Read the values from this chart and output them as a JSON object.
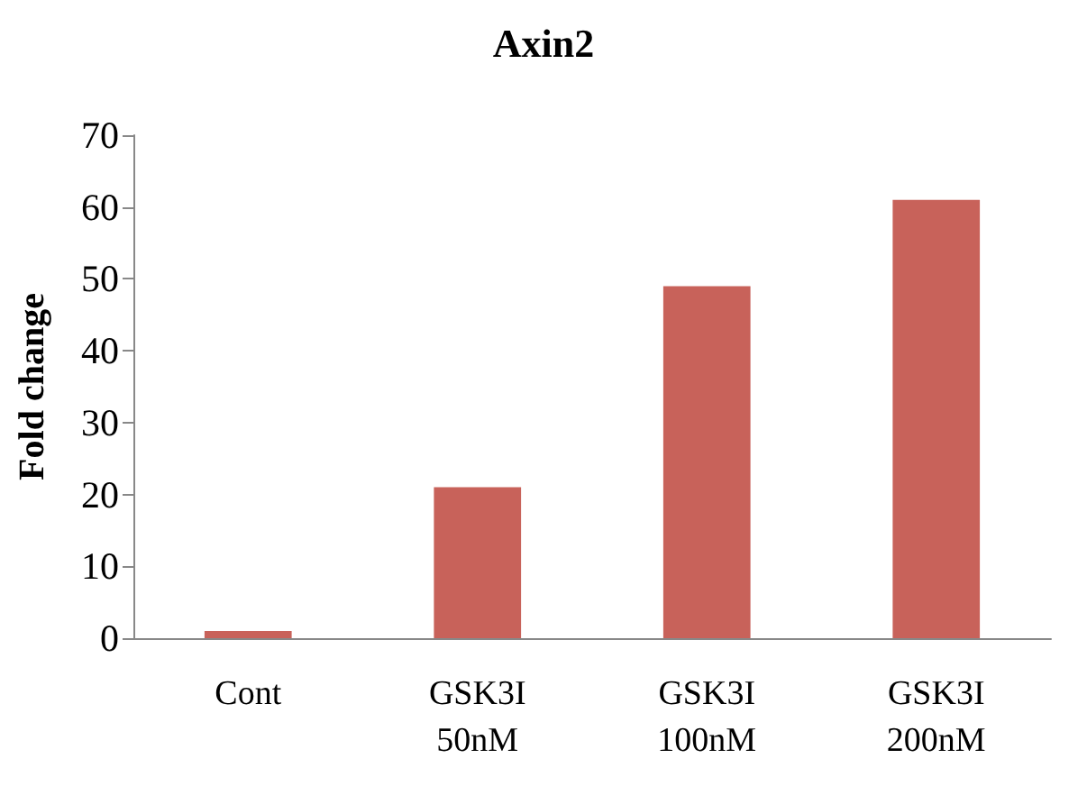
{
  "chart_data": {
    "type": "bar",
    "title": "Axin2",
    "ylabel": "Fold change",
    "categories": [
      "Cont",
      "GSK3I\n50nM",
      "GSK3I\n100nM",
      "GSK3I\n200nM"
    ],
    "values": [
      1,
      21,
      49,
      61
    ],
    "color": "#c8625a",
    "ylim": [
      0,
      70
    ],
    "yticks": [
      0,
      10,
      20,
      30,
      40,
      50,
      60,
      70
    ]
  }
}
